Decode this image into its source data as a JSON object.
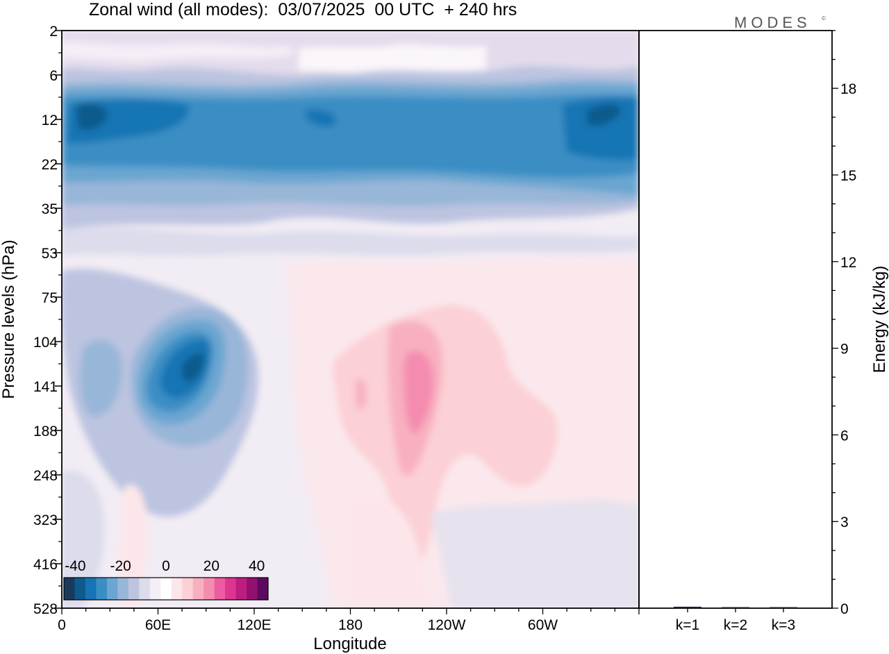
{
  "header": {
    "title": "Zonal wind (all modes):  03/07/2025  00 UTC  + 240 hrs",
    "logo": "MODES",
    "logo_mark": "©"
  },
  "chart_data": [
    {
      "type": "heatmap",
      "title": "Zonal wind (all modes):  03/07/2025  00 UTC  + 240 hrs",
      "xlabel": "Longitude",
      "ylabel": "Pressure levels (hPa)",
      "x_ticks": [
        "0",
        "60E",
        "120E",
        "180",
        "120W",
        "60W"
      ],
      "x_tick_values": [
        0,
        60,
        120,
        180,
        240,
        300
      ],
      "xlim": [
        0,
        360
      ],
      "y_ticks": [
        "2",
        "6",
        "12",
        "22",
        "35",
        "53",
        "75",
        "104",
        "141",
        "188",
        "248",
        "323",
        "416",
        "528"
      ],
      "colorbar": {
        "ticks": [
          "-40",
          "-20",
          "0",
          "20",
          "40"
        ],
        "tick_values": [
          -40,
          -20,
          0,
          20,
          40
        ],
        "range": [
          -45,
          45
        ],
        "colors": [
          "#1a3a5c",
          "#0e5a8c",
          "#1674b4",
          "#3a8ec4",
          "#6aa6d0",
          "#98b6d8",
          "#bcc4e0",
          "#dcdcec",
          "#f4eef6",
          "#ffffff",
          "#fde6ea",
          "#fbd0d6",
          "#f8b0c0",
          "#f48cb0",
          "#ec5ca0",
          "#dc3690",
          "#bc1e80",
          "#941070",
          "#5c0a60"
        ]
      },
      "field_regions": [
        {
          "label": "upper easterly jet",
          "lon_range": [
            0,
            360
          ],
          "lev_range": [
            "6",
            "35"
          ],
          "value": -25
        },
        {
          "label": "strong easterly core west",
          "lon_range": [
            8,
            70
          ],
          "lev_range": [
            "12",
            "12"
          ],
          "value": -38
        },
        {
          "label": "strong easterly core east",
          "lon_range": [
            320,
            352
          ],
          "lev_range": [
            "12",
            "12"
          ],
          "value": -38
        },
        {
          "label": "easterly cell",
          "lon_range": [
            50,
            100
          ],
          "lev_range": [
            "104",
            "188"
          ],
          "value": -35
        },
        {
          "label": "westerly cell",
          "lon_range": [
            210,
            235
          ],
          "lev_range": [
            "104",
            "248"
          ],
          "value": 18
        }
      ]
    },
    {
      "type": "bar",
      "title": "",
      "xlabel": "",
      "ylabel": "Energy (kJ/kg)",
      "categories": [
        "k=1",
        "k=2",
        "k=3"
      ],
      "values": [
        0.05,
        0.03,
        0.02
      ],
      "y_ticks": [
        "0",
        "3",
        "6",
        "9",
        "12",
        "15",
        "18"
      ],
      "y_tick_values": [
        0,
        3,
        6,
        9,
        12,
        15,
        18
      ],
      "ylim": [
        0,
        20
      ]
    }
  ]
}
